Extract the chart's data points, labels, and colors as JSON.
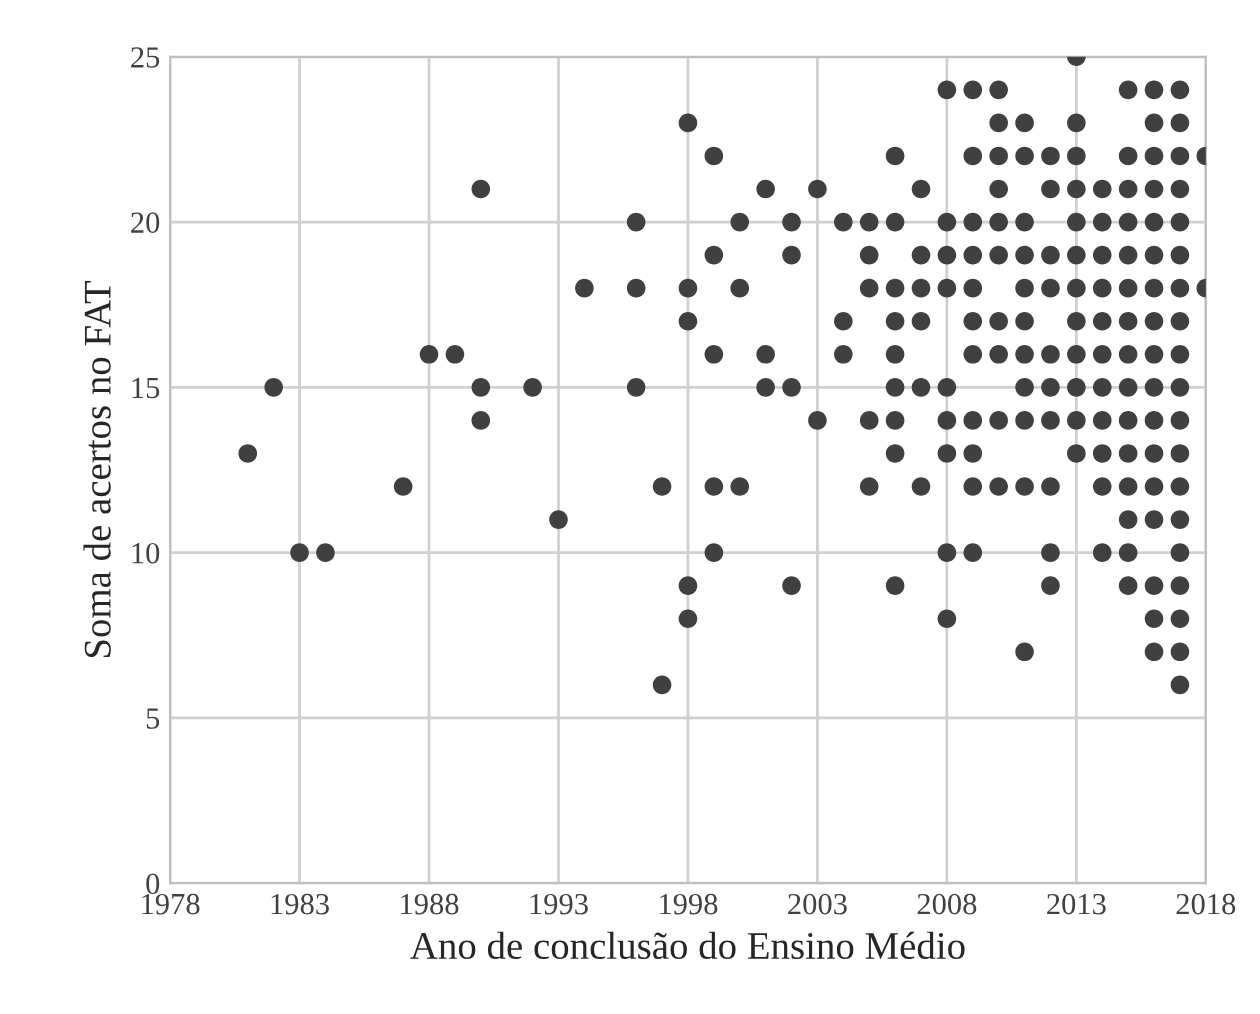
{
  "chart_data": {
    "type": "scatter",
    "xlabel": "Ano de conclusão do Ensino Médio",
    "ylabel": "Soma de acertos no FAT",
    "xlim": [
      1978,
      2018
    ],
    "xticks": [
      1978,
      1983,
      1988,
      1993,
      1998,
      2003,
      2008,
      2013,
      2018
    ],
    "ylim": [
      0,
      25
    ],
    "yticks": [
      0,
      5,
      10,
      15,
      20,
      25
    ],
    "grid": true,
    "marker": "circle",
    "series": [
      {
        "color": "#404040",
        "x": [
          1981,
          1982,
          1983,
          1984,
          1987,
          1988,
          1989,
          1990,
          1990,
          1990,
          1992,
          1993,
          1994,
          1996,
          1996,
          1996,
          1997,
          1997,
          1998,
          1998,
          1998,
          1998,
          1998,
          1999,
          1999,
          1999,
          1999,
          1999,
          2000,
          2000,
          2000,
          2001,
          2001,
          2001,
          2002,
          2002,
          2002,
          2002,
          2003,
          2003,
          2004,
          2004,
          2004,
          2005,
          2005,
          2005,
          2005,
          2005,
          2006,
          2006,
          2006,
          2006,
          2006,
          2006,
          2006,
          2006,
          2006,
          2007,
          2007,
          2007,
          2007,
          2007,
          2007,
          2008,
          2008,
          2008,
          2008,
          2008,
          2008,
          2008,
          2008,
          2008,
          2009,
          2009,
          2009,
          2009,
          2009,
          2009,
          2009,
          2009,
          2009,
          2009,
          2009,
          2010,
          2010,
          2010,
          2010,
          2010,
          2010,
          2010,
          2010,
          2010,
          2010,
          2011,
          2011,
          2011,
          2011,
          2011,
          2011,
          2011,
          2011,
          2011,
          2011,
          2011,
          2012,
          2012,
          2012,
          2012,
          2012,
          2012,
          2012,
          2012,
          2012,
          2012,
          2013,
          2013,
          2013,
          2013,
          2013,
          2013,
          2013,
          2013,
          2013,
          2013,
          2013,
          2013,
          2014,
          2014,
          2014,
          2014,
          2014,
          2014,
          2014,
          2014,
          2014,
          2014,
          2014,
          2015,
          2015,
          2015,
          2015,
          2015,
          2015,
          2015,
          2015,
          2015,
          2015,
          2015,
          2015,
          2015,
          2015,
          2015,
          2016,
          2016,
          2016,
          2016,
          2016,
          2016,
          2016,
          2016,
          2016,
          2016,
          2016,
          2016,
          2016,
          2016,
          2016,
          2016,
          2016,
          2017,
          2017,
          2017,
          2017,
          2017,
          2017,
          2017,
          2017,
          2017,
          2017,
          2017,
          2017,
          2017,
          2017,
          2017,
          2017,
          2017,
          2017,
          2017,
          2018,
          2018
        ],
        "values": [
          13,
          15,
          10,
          10,
          12,
          16,
          16,
          21,
          15,
          14,
          15,
          11,
          18,
          20,
          18,
          15,
          12,
          6,
          23,
          18,
          17,
          9,
          8,
          22,
          19,
          16,
          12,
          10,
          20,
          18,
          12,
          21,
          16,
          15,
          20,
          19,
          15,
          9,
          21,
          14,
          20,
          17,
          16,
          20,
          19,
          18,
          14,
          12,
          22,
          20,
          18,
          17,
          16,
          15,
          14,
          13,
          9,
          21,
          19,
          18,
          17,
          15,
          12,
          24,
          20,
          19,
          18,
          15,
          14,
          13,
          10,
          8,
          24,
          22,
          20,
          19,
          18,
          17,
          16,
          14,
          13,
          12,
          10,
          24,
          23,
          22,
          21,
          20,
          19,
          17,
          16,
          14,
          12,
          23,
          22,
          20,
          19,
          18,
          17,
          16,
          15,
          14,
          12,
          7,
          22,
          21,
          19,
          18,
          16,
          15,
          14,
          12,
          10,
          9,
          25,
          23,
          22,
          21,
          20,
          19,
          18,
          17,
          16,
          15,
          14,
          13,
          21,
          20,
          19,
          18,
          17,
          16,
          15,
          14,
          13,
          12,
          10,
          24,
          22,
          21,
          20,
          19,
          18,
          17,
          16,
          15,
          14,
          13,
          12,
          11,
          10,
          9,
          24,
          23,
          22,
          21,
          20,
          19,
          18,
          17,
          16,
          15,
          14,
          13,
          12,
          11,
          9,
          8,
          7,
          24,
          23,
          22,
          21,
          20,
          19,
          18,
          17,
          16,
          15,
          14,
          13,
          12,
          11,
          10,
          9,
          8,
          7,
          6,
          22,
          18
        ]
      }
    ]
  }
}
